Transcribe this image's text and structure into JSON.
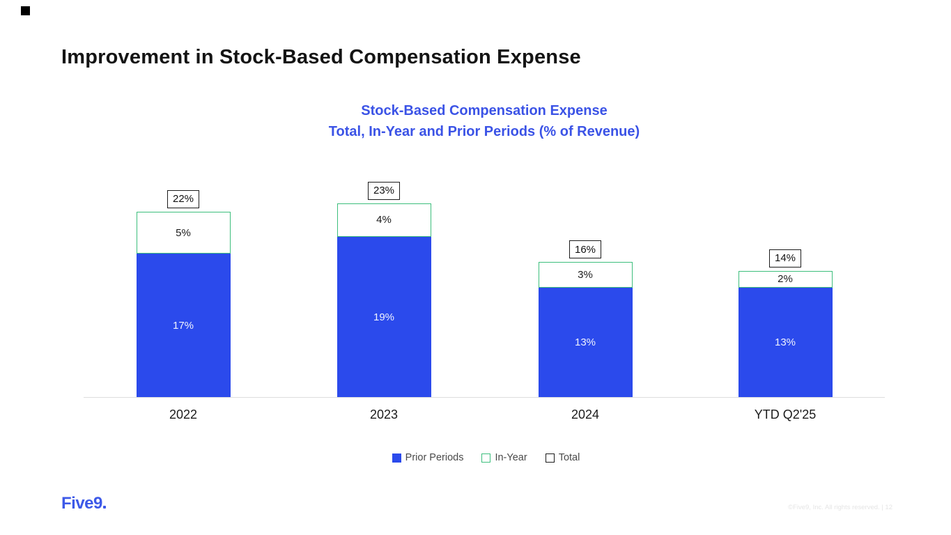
{
  "slide": {
    "title": "Improvement in Stock-Based Compensation Expense",
    "footer_logo": "Five9",
    "footer_copyright": "©Five9, Inc. All rights reserved. | 12"
  },
  "chart_data": {
    "type": "bar",
    "stacked": true,
    "title_line1": "Stock-Based Compensation Expense",
    "title_line2": "Total, In-Year and Prior Periods (% of Revenue)",
    "categories": [
      "2022",
      "2023",
      "2024",
      "YTD Q2'25"
    ],
    "series": [
      {
        "name": "Prior Periods",
        "values": [
          17,
          19,
          13,
          13
        ],
        "style": "filled",
        "color": "#2B4AEC"
      },
      {
        "name": "In-Year",
        "values": [
          5,
          4,
          3,
          2
        ],
        "style": "outlined",
        "color": "#3CBE7C"
      },
      {
        "name": "Total",
        "values": [
          22,
          23,
          16,
          14
        ],
        "style": "boxed-label",
        "color": "#1a1a1a"
      }
    ],
    "unit": "%",
    "ylim": [
      0,
      25
    ],
    "axis_labels_hidden": true,
    "grid": false,
    "legend_position": "bottom",
    "colors": {
      "primary_blue": "#2B4AEC",
      "mint_green": "#3CBE7C",
      "title_blue": "#3B53E6"
    }
  }
}
